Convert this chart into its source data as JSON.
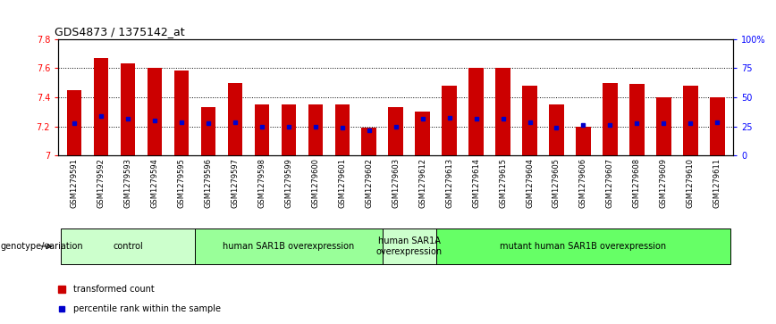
{
  "title": "GDS4873 / 1375142_at",
  "samples": [
    "GSM1279591",
    "GSM1279592",
    "GSM1279593",
    "GSM1279594",
    "GSM1279595",
    "GSM1279596",
    "GSM1279597",
    "GSM1279598",
    "GSM1279599",
    "GSM1279600",
    "GSM1279601",
    "GSM1279602",
    "GSM1279603",
    "GSM1279612",
    "GSM1279613",
    "GSM1279614",
    "GSM1279615",
    "GSM1279604",
    "GSM1279605",
    "GSM1279606",
    "GSM1279607",
    "GSM1279608",
    "GSM1279609",
    "GSM1279610",
    "GSM1279611"
  ],
  "bar_values": [
    7.45,
    7.67,
    7.63,
    7.6,
    7.58,
    7.33,
    7.5,
    7.35,
    7.35,
    7.35,
    7.35,
    7.19,
    7.33,
    7.3,
    7.48,
    7.6,
    7.6,
    7.48,
    7.35,
    7.2,
    7.5,
    7.49,
    7.4,
    7.48,
    7.4
  ],
  "percentile_values": [
    7.22,
    7.27,
    7.25,
    7.24,
    7.23,
    7.22,
    7.23,
    7.2,
    7.2,
    7.2,
    7.19,
    7.17,
    7.2,
    7.25,
    7.26,
    7.25,
    7.25,
    7.23,
    7.19,
    7.21,
    7.21,
    7.22,
    7.22,
    7.22,
    7.23
  ],
  "ymin": 7.0,
  "ymax": 7.8,
  "bar_color": "#CC0000",
  "dot_color": "#0000CC",
  "groups": [
    {
      "label": "control",
      "start": 0,
      "end": 4,
      "color": "#CCFFCC"
    },
    {
      "label": "human SAR1B overexpression",
      "start": 5,
      "end": 11,
      "color": "#99FF99"
    },
    {
      "label": "human SAR1A\noverexpression",
      "start": 12,
      "end": 13,
      "color": "#CCFFCC"
    },
    {
      "label": "mutant human SAR1B overexpression",
      "start": 14,
      "end": 24,
      "color": "#66FF66"
    }
  ],
  "right_yticks": [
    0,
    25,
    50,
    75,
    100
  ],
  "right_ylabels": [
    "0",
    "25",
    "50",
    "75",
    "100%"
  ],
  "legend_items": [
    "transformed count",
    "percentile rank within the sample"
  ],
  "background_color": "#FFFFFF",
  "plot_bg": "#FFFFFF",
  "left_ytick_labels": [
    "7",
    "7.2",
    "7.4",
    "7.6",
    "7.8"
  ],
  "left_ytick_vals": [
    7.0,
    7.2,
    7.4,
    7.6,
    7.8
  ],
  "title_fontsize": 9,
  "tick_fontsize": 7,
  "label_fontsize": 7,
  "bar_width": 0.55
}
